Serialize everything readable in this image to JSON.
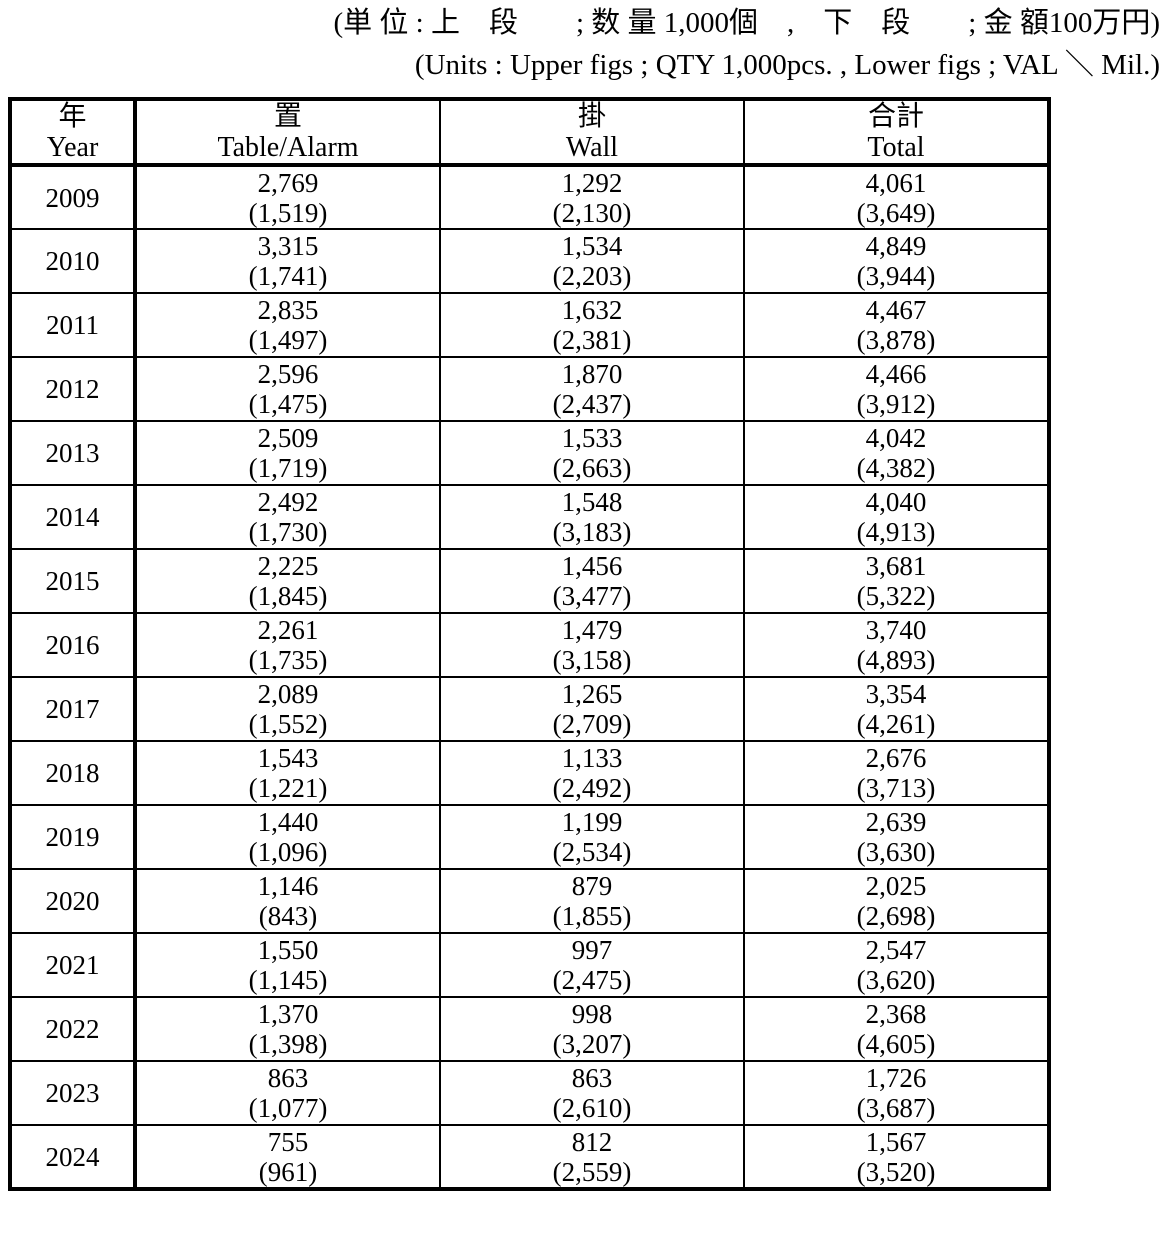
{
  "caption": {
    "jp": "(単 位 : 上　段　　; 数 量 1,000個　,　下　段　　; 金 額100万円)",
    "en": "(Units : Upper figs ; QTY 1,000pcs. ,  Lower figs ; VAL ＼ Mil.)"
  },
  "table": {
    "columns": [
      {
        "jp": "年",
        "en": "Year"
      },
      {
        "jp": "置",
        "en": "Table/Alarm"
      },
      {
        "jp": "掛",
        "en": "Wall"
      },
      {
        "jp": "合計",
        "en": "Total"
      }
    ],
    "rows": [
      {
        "year": "2009",
        "cells": [
          [
            "2,769",
            "(1,519)"
          ],
          [
            "1,292",
            "(2,130)"
          ],
          [
            "4,061",
            "(3,649)"
          ]
        ]
      },
      {
        "year": "2010",
        "cells": [
          [
            "3,315",
            "(1,741)"
          ],
          [
            "1,534",
            "(2,203)"
          ],
          [
            "4,849",
            "(3,944)"
          ]
        ]
      },
      {
        "year": "2011",
        "cells": [
          [
            "2,835",
            "(1,497)"
          ],
          [
            "1,632",
            "(2,381)"
          ],
          [
            "4,467",
            "(3,878)"
          ]
        ]
      },
      {
        "year": "2012",
        "cells": [
          [
            "2,596",
            "(1,475)"
          ],
          [
            "1,870",
            "(2,437)"
          ],
          [
            "4,466",
            "(3,912)"
          ]
        ]
      },
      {
        "year": "2013",
        "cells": [
          [
            "2,509",
            "(1,719)"
          ],
          [
            "1,533",
            "(2,663)"
          ],
          [
            "4,042",
            "(4,382)"
          ]
        ]
      },
      {
        "year": "2014",
        "cells": [
          [
            "2,492",
            "(1,730)"
          ],
          [
            "1,548",
            "(3,183)"
          ],
          [
            "4,040",
            "(4,913)"
          ]
        ]
      },
      {
        "year": "2015",
        "cells": [
          [
            "2,225",
            "(1,845)"
          ],
          [
            "1,456",
            "(3,477)"
          ],
          [
            "3,681",
            "(5,322)"
          ]
        ]
      },
      {
        "year": "2016",
        "cells": [
          [
            "2,261",
            "(1,735)"
          ],
          [
            "1,479",
            "(3,158)"
          ],
          [
            "3,740",
            "(4,893)"
          ]
        ]
      },
      {
        "year": "2017",
        "cells": [
          [
            "2,089",
            "(1,552)"
          ],
          [
            "1,265",
            "(2,709)"
          ],
          [
            "3,354",
            "(4,261)"
          ]
        ]
      },
      {
        "year": "2018",
        "cells": [
          [
            "1,543",
            "(1,221)"
          ],
          [
            "1,133",
            "(2,492)"
          ],
          [
            "2,676",
            "(3,713)"
          ]
        ]
      },
      {
        "year": "2019",
        "cells": [
          [
            "1,440",
            "(1,096)"
          ],
          [
            "1,199",
            "(2,534)"
          ],
          [
            "2,639",
            "(3,630)"
          ]
        ]
      },
      {
        "year": "2020",
        "cells": [
          [
            "1,146",
            "(843)"
          ],
          [
            "879",
            "(1,855)"
          ],
          [
            "2,025",
            "(2,698)"
          ]
        ]
      },
      {
        "year": "2021",
        "cells": [
          [
            "1,550",
            "(1,145)"
          ],
          [
            "997",
            "(2,475)"
          ],
          [
            "2,547",
            "(3,620)"
          ]
        ]
      },
      {
        "year": "2022",
        "cells": [
          [
            "1,370",
            "(1,398)"
          ],
          [
            "998",
            "(3,207)"
          ],
          [
            "2,368",
            "(4,605)"
          ]
        ]
      },
      {
        "year": "2023",
        "cells": [
          [
            "863",
            "(1,077)"
          ],
          [
            "863",
            "(2,610)"
          ],
          [
            "1,726",
            "(3,687)"
          ]
        ]
      },
      {
        "year": "2024",
        "cells": [
          [
            "755",
            "(961)"
          ],
          [
            "812",
            "(2,559)"
          ],
          [
            "1,567",
            "(3,520)"
          ]
        ]
      }
    ]
  },
  "chart_data": {
    "type": "table",
    "title": "Clock shipments by year (upper: QTY 1,000pcs; lower: VAL 100 million... value in million yen)",
    "years": [
      2009,
      2010,
      2011,
      2012,
      2013,
      2014,
      2015,
      2016,
      2017,
      2018,
      2019,
      2020,
      2021,
      2022,
      2023,
      2024
    ],
    "series": [
      {
        "name": "Table/Alarm QTY (1,000pcs)",
        "values": [
          2769,
          3315,
          2835,
          2596,
          2509,
          2492,
          2225,
          2261,
          2089,
          1543,
          1440,
          1146,
          1550,
          1370,
          863,
          755
        ]
      },
      {
        "name": "Table/Alarm VAL (million yen)",
        "values": [
          1519,
          1741,
          1497,
          1475,
          1719,
          1730,
          1845,
          1735,
          1552,
          1221,
          1096,
          843,
          1145,
          1398,
          1077,
          961
        ]
      },
      {
        "name": "Wall QTY (1,000pcs)",
        "values": [
          1292,
          1534,
          1632,
          1870,
          1533,
          1548,
          1456,
          1479,
          1265,
          1133,
          1199,
          879,
          997,
          998,
          863,
          812
        ]
      },
      {
        "name": "Wall VAL (million yen)",
        "values": [
          2130,
          2203,
          2381,
          2437,
          2663,
          3183,
          3477,
          3158,
          2709,
          2492,
          2534,
          1855,
          2475,
          3207,
          2610,
          2559
        ]
      },
      {
        "name": "Total QTY (1,000pcs)",
        "values": [
          4061,
          4849,
          4467,
          4466,
          4042,
          4040,
          3681,
          3740,
          3354,
          2676,
          2639,
          2025,
          2547,
          2368,
          1726,
          1567
        ]
      },
      {
        "name": "Total VAL (million yen)",
        "values": [
          3649,
          3944,
          3878,
          3912,
          4382,
          4913,
          5322,
          4893,
          4261,
          3713,
          3630,
          2698,
          3620,
          4605,
          3687,
          3520
        ]
      }
    ]
  }
}
